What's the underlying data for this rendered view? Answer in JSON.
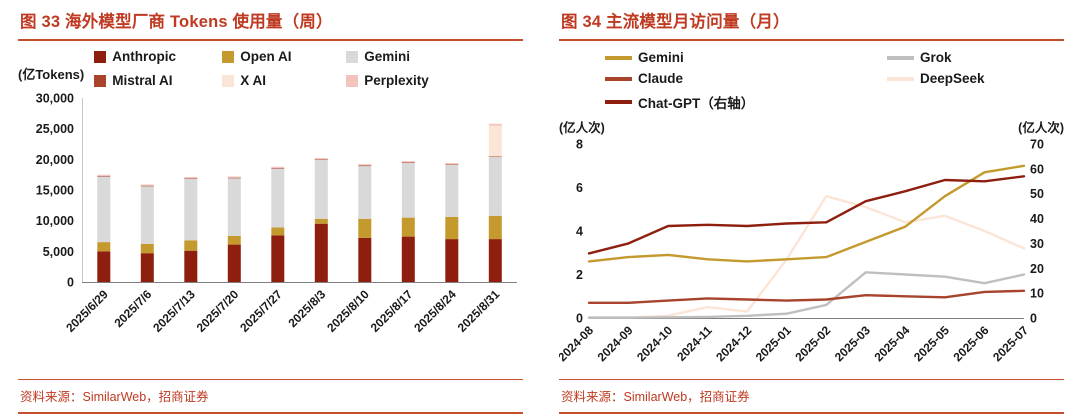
{
  "accent": "#bf3a21",
  "rule_color": "#c4512c",
  "panels": [
    {
      "title": "图 33 海外模型厂商 Tokens 使用量（周）",
      "unit_label": "(亿Tokens)",
      "source": "资料来源：SimilarWeb，招商证券"
    },
    {
      "title": "图 34 主流模型月访问量（月）",
      "unit_left": "(亿人次)",
      "unit_right": "(亿人次)",
      "source": "资料来源：SimilarWeb，招商证券"
    }
  ],
  "chart_data": [
    {
      "type": "bar",
      "stacked": true,
      "title": "海外模型厂商 Tokens 使用量（周）",
      "ylabel": "亿Tokens",
      "categories": [
        "2025/6/29",
        "2025/7/6",
        "2025/7/13",
        "2025/7/20",
        "2025/7/27",
        "2025/8/3",
        "2025/8/10",
        "2025/8/17",
        "2025/8/24",
        "2025/8/31"
      ],
      "series": [
        {
          "name": "Anthropic",
          "color": "#8e1f0f",
          "values": [
            5000,
            4700,
            5100,
            6100,
            7600,
            9500,
            7200,
            7400,
            7000,
            7000
          ]
        },
        {
          "name": "Open AI",
          "color": "#c49a2e",
          "values": [
            1500,
            1500,
            1700,
            1400,
            1300,
            800,
            3100,
            3100,
            3600,
            3800
          ]
        },
        {
          "name": "Gemini",
          "color": "#d9d9d9",
          "values": [
            10700,
            9400,
            10000,
            9400,
            9600,
            9600,
            8600,
            8900,
            8500,
            9600
          ]
        },
        {
          "name": "Mistral AI",
          "color": "#a8432c",
          "values": [
            100,
            100,
            100,
            100,
            100,
            100,
            100,
            100,
            100,
            100
          ]
        },
        {
          "name": "X AI",
          "color": "#fbe5d6",
          "values": [
            0,
            0,
            0,
            0,
            0,
            0,
            0,
            0,
            0,
            5000
          ]
        },
        {
          "name": "Perplexity",
          "color": "#f2c4bc",
          "values": [
            200,
            200,
            200,
            200,
            200,
            200,
            200,
            200,
            200,
            300
          ]
        }
      ],
      "ylim": [
        0,
        30000
      ],
      "ytick_step": 5000,
      "ytick_labels": [
        "0",
        "5,000",
        "10,000",
        "15,000",
        "20,000",
        "25,000",
        "30,000"
      ],
      "grid": false,
      "legend_position": "top"
    },
    {
      "type": "line",
      "title": "主流模型月访问量（月）",
      "ylabel_left": "亿人次",
      "ylabel_right": "亿人次",
      "x": [
        "2024-08",
        "2024-09",
        "2024-10",
        "2024-11",
        "2024-12",
        "2025-01",
        "2025-02",
        "2025-03",
        "2025-04",
        "2025-05",
        "2025-06",
        "2025-07"
      ],
      "left_axis": {
        "max": 8,
        "step": 2,
        "ticks": [
          "0",
          "2",
          "4",
          "6",
          "8"
        ]
      },
      "right_axis": {
        "max": 70,
        "step": 10,
        "ticks": [
          "0",
          "10",
          "20",
          "30",
          "40",
          "50",
          "60",
          "70"
        ]
      },
      "series": [
        {
          "name": "Gemini",
          "legend": "Gemini",
          "axis": "left",
          "color": "#c49a2e",
          "values": [
            2.6,
            2.8,
            2.9,
            2.7,
            2.6,
            2.7,
            2.8,
            3.5,
            4.2,
            5.6,
            6.7,
            7.0
          ]
        },
        {
          "name": "Grok",
          "legend": "Grok",
          "axis": "left",
          "color": "#bfbfbf",
          "values": [
            0.02,
            0.02,
            0.03,
            0.05,
            0.1,
            0.2,
            0.6,
            2.1,
            2.0,
            1.9,
            1.6,
            2.0
          ]
        },
        {
          "name": "Claude",
          "legend": "Claude",
          "axis": "left",
          "color": "#a8432c",
          "values": [
            0.7,
            0.7,
            0.8,
            0.9,
            0.85,
            0.8,
            0.85,
            1.05,
            1.0,
            0.95,
            1.2,
            1.25
          ]
        },
        {
          "name": "DeepSeek",
          "legend": "DeepSeek",
          "axis": "left",
          "color": "#fbe5d6",
          "values": [
            0.02,
            0.02,
            0.1,
            0.5,
            0.3,
            2.7,
            5.6,
            5.1,
            4.4,
            4.7,
            4.0,
            3.2
          ]
        },
        {
          "name": "Chat-GPT",
          "legend": "Chat-GPT（右轴）",
          "axis": "right",
          "color": "#8e1f0f",
          "values": [
            26,
            30,
            37,
            37.5,
            37,
            38,
            38.5,
            47,
            51,
            55.5,
            55,
            57
          ]
        }
      ],
      "draw_order": [
        3,
        1,
        0,
        2,
        4
      ],
      "grid": false,
      "legend_position": "top"
    }
  ]
}
